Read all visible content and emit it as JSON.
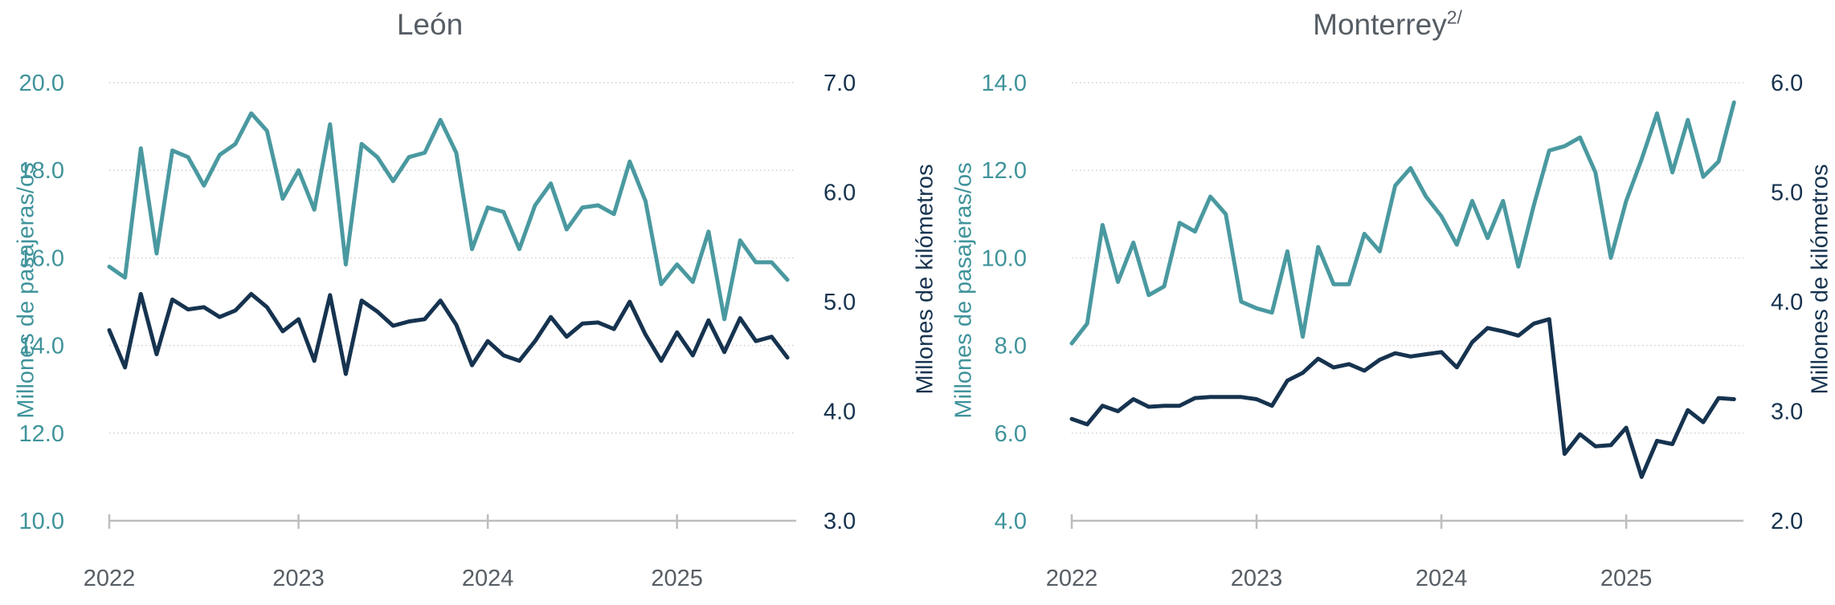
{
  "page": {
    "background": "#ffffff"
  },
  "colors": {
    "passengers_line": "#4A99A0",
    "kilometers_line": "#16334F",
    "left_tick_text": "#3F939B",
    "right_tick_text": "#16334F",
    "title_text": "#565D64",
    "year_tick_text": "#565D64",
    "gridline": "#CFCFCF",
    "axis_line": "#BDBDBD"
  },
  "chart_data": [
    {
      "type": "line",
      "title": "León",
      "title_superscript": "",
      "ylabel_left": "Millones de pasajeras/os",
      "ylabel_right": "Millones de kilómetros",
      "x_tick_labels": [
        "2022",
        "2023",
        "2024",
        "2025"
      ],
      "y_left": {
        "min": 10.0,
        "max": 20.0,
        "ticks": [
          "20.0",
          "18.0",
          "16.0",
          "14.0",
          "12.0",
          "10.0"
        ]
      },
      "y_right": {
        "min": 3.0,
        "max": 7.0,
        "ticks": [
          "7.0",
          "6.0",
          "5.0",
          "4.0",
          "3.0"
        ]
      },
      "grid": "dotted-horizontal",
      "legend": "none",
      "months": [
        "2022-01",
        "2022-02",
        "2022-03",
        "2022-04",
        "2022-05",
        "2022-06",
        "2022-07",
        "2022-08",
        "2022-09",
        "2022-10",
        "2022-11",
        "2022-12",
        "2023-01",
        "2023-02",
        "2023-03",
        "2023-04",
        "2023-05",
        "2023-06",
        "2023-07",
        "2023-08",
        "2023-09",
        "2023-10",
        "2023-11",
        "2023-12",
        "2024-01",
        "2024-02",
        "2024-03",
        "2024-04",
        "2024-05",
        "2024-06",
        "2024-07",
        "2024-08",
        "2024-09",
        "2024-10",
        "2024-11",
        "2024-12",
        "2025-01",
        "2025-02",
        "2025-03",
        "2025-04",
        "2025-05",
        "2025-06",
        "2025-07",
        "2025-08"
      ],
      "series": [
        {
          "name": "Millones de pasajeras/os",
          "axis": "left",
          "color": "#4A99A0",
          "values": [
            15.8,
            15.55,
            18.5,
            16.1,
            18.45,
            18.3,
            17.65,
            18.35,
            18.6,
            19.3,
            18.9,
            17.35,
            18.0,
            17.1,
            19.05,
            15.85,
            18.6,
            18.3,
            17.75,
            18.3,
            18.4,
            19.15,
            18.4,
            16.2,
            17.15,
            17.05,
            16.2,
            17.2,
            17.7,
            16.65,
            17.15,
            17.2,
            17.0,
            18.2,
            17.3,
            15.4,
            15.85,
            15.45,
            16.6,
            14.6,
            16.4,
            15.9,
            15.9,
            15.5
          ]
        },
        {
          "name": "Millones de kilómetros",
          "axis": "right",
          "color": "#16334F",
          "values": [
            4.74,
            4.4,
            5.07,
            4.52,
            5.02,
            4.93,
            4.95,
            4.86,
            4.92,
            5.07,
            4.95,
            4.73,
            4.84,
            4.46,
            5.06,
            4.34,
            5.01,
            4.91,
            4.78,
            4.82,
            4.84,
            5.01,
            4.79,
            4.42,
            4.64,
            4.51,
            4.46,
            4.64,
            4.86,
            4.68,
            4.8,
            4.81,
            4.75,
            5.0,
            4.7,
            4.46,
            4.72,
            4.51,
            4.83,
            4.54,
            4.85,
            4.64,
            4.68,
            4.49
          ]
        }
      ]
    },
    {
      "type": "line",
      "title": "Monterrey",
      "title_superscript": "2/",
      "ylabel_left": "Millones de pasajeras/os",
      "ylabel_right": "Millones de kilómetros",
      "x_tick_labels": [
        "2022",
        "2023",
        "2024",
        "2025"
      ],
      "y_left": {
        "min": 4.0,
        "max": 14.0,
        "ticks": [
          "14.0",
          "12.0",
          "10.0",
          "8.0",
          "6.0",
          "4.0"
        ]
      },
      "y_right": {
        "min": 2.0,
        "max": 6.0,
        "ticks": [
          "6.0",
          "5.0",
          "4.0",
          "3.0",
          "2.0"
        ]
      },
      "grid": "dotted-horizontal",
      "legend": "none",
      "months": [
        "2022-01",
        "2022-02",
        "2022-03",
        "2022-04",
        "2022-05",
        "2022-06",
        "2022-07",
        "2022-08",
        "2022-09",
        "2022-10",
        "2022-11",
        "2022-12",
        "2023-01",
        "2023-02",
        "2023-03",
        "2023-04",
        "2023-05",
        "2023-06",
        "2023-07",
        "2023-08",
        "2023-09",
        "2023-10",
        "2023-11",
        "2023-12",
        "2024-01",
        "2024-02",
        "2024-03",
        "2024-04",
        "2024-05",
        "2024-06",
        "2024-07",
        "2024-08",
        "2024-09",
        "2024-10",
        "2024-11",
        "2024-12",
        "2025-01",
        "2025-02",
        "2025-03",
        "2025-04",
        "2025-05",
        "2025-06",
        "2025-07",
        "2025-08"
      ],
      "series": [
        {
          "name": "Millones de pasajeras/os",
          "axis": "left",
          "color": "#4A99A0",
          "values": [
            8.05,
            8.5,
            10.75,
            9.45,
            10.35,
            9.15,
            9.35,
            10.8,
            10.6,
            11.4,
            11.0,
            9.0,
            8.85,
            8.75,
            10.15,
            8.2,
            10.25,
            9.4,
            9.4,
            10.55,
            10.15,
            11.65,
            12.05,
            11.4,
            10.95,
            10.3,
            11.3,
            10.45,
            11.3,
            9.8,
            11.2,
            12.45,
            12.55,
            12.75,
            11.95,
            10.0,
            11.3,
            12.25,
            13.3,
            11.95,
            13.15,
            11.85,
            12.2,
            13.55
          ]
        },
        {
          "name": "Millones de kilómetros",
          "axis": "right",
          "color": "#16334F",
          "values": [
            2.93,
            2.88,
            3.05,
            3.0,
            3.11,
            3.04,
            3.05,
            3.05,
            3.12,
            3.13,
            3.13,
            3.13,
            3.11,
            3.05,
            3.28,
            3.35,
            3.48,
            3.4,
            3.43,
            3.37,
            3.47,
            3.53,
            3.5,
            3.52,
            3.54,
            3.4,
            3.63,
            3.76,
            3.73,
            3.69,
            3.8,
            3.84,
            2.61,
            2.79,
            2.68,
            2.69,
            2.85,
            2.4,
            2.73,
            2.7,
            3.01,
            2.9,
            3.12,
            3.11
          ]
        }
      ]
    }
  ]
}
